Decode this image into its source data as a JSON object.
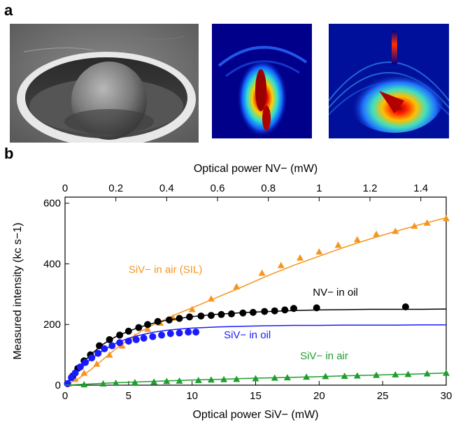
{
  "panel_a": {
    "label": "a",
    "images": [
      {
        "name": "sem-solid-immersion-lens-image"
      },
      {
        "name": "simulated-field-intensity-map-1"
      },
      {
        "name": "simulated-field-intensity-map-2"
      }
    ]
  },
  "panel_b": {
    "label": "b"
  },
  "chart_data": {
    "type": "scatter",
    "xlabel_bottom": "Optical power SiV− (mW)",
    "xlabel_top": "Optical power NV− (mW)",
    "ylabel": "Measured intensity (kc s−1)",
    "xlim": [
      0,
      30
    ],
    "xlim_top": [
      0,
      1.5
    ],
    "ylim": [
      0,
      620
    ],
    "x_ticks": [
      0,
      5,
      10,
      15,
      20,
      25,
      30
    ],
    "x_ticks_top": [
      "0",
      "0.2",
      "0.4",
      "0.6",
      "0.8",
      "1",
      "1.2",
      "1.4"
    ],
    "y_ticks": [
      0,
      200,
      400,
      600
    ],
    "grid": false,
    "series": [
      {
        "name": "SiV− in air (SIL)",
        "color": "#f7941d",
        "marker": "triangle",
        "x": [
          0.3,
          0.8,
          1.5,
          2.5,
          3.5,
          4.5,
          5.5,
          6.5,
          7.5,
          8.5,
          10,
          11.5,
          13.5,
          15.5,
          17,
          18.5,
          20,
          21.5,
          23,
          24.5,
          26,
          27.5,
          28.5,
          30
        ],
        "y": [
          5,
          20,
          40,
          70,
          100,
          130,
          160,
          185,
          205,
          222,
          250,
          285,
          325,
          370,
          395,
          420,
          440,
          462,
          480,
          498,
          508,
          525,
          535,
          550
        ],
        "fit_x": [
          0,
          1,
          2,
          3,
          4,
          5,
          6,
          7,
          8,
          9,
          10,
          12,
          14,
          16,
          18,
          20,
          22,
          24,
          26,
          28,
          30
        ],
        "fit_y": [
          0,
          20,
          50,
          85,
          120,
          150,
          178,
          200,
          220,
          238,
          255,
          290,
          325,
          362,
          395,
          425,
          455,
          482,
          507,
          530,
          552
        ],
        "label_x": 5,
        "label_y": 370
      },
      {
        "name": "NV− in oil",
        "color": "#000000",
        "marker": "circle",
        "x": [
          0.2,
          0.6,
          1,
          1.5,
          2,
          2.7,
          3.5,
          4.3,
          5,
          5.8,
          6.5,
          7.3,
          8.2,
          9,
          9.8,
          10.7,
          11.5,
          12.3,
          13.1,
          14,
          14.8,
          15.7,
          16.5,
          17.3,
          18,
          19.8,
          26.8
        ],
        "y": [
          5,
          30,
          55,
          80,
          100,
          130,
          150,
          165,
          178,
          190,
          200,
          210,
          215,
          220,
          225,
          228,
          230,
          233,
          235,
          238,
          240,
          243,
          245,
          248,
          253,
          255,
          258
        ],
        "fit_x": [
          0,
          1,
          2,
          3,
          4,
          5,
          6,
          7,
          8,
          10,
          12,
          14,
          16,
          18,
          20,
          22,
          24,
          26,
          28,
          30
        ],
        "fit_y": [
          0,
          55,
          100,
          135,
          160,
          178,
          193,
          205,
          214,
          226,
          234,
          239,
          243,
          246,
          248,
          249,
          250,
          250,
          250,
          251
        ],
        "label_x": 19.5,
        "label_y": 295
      },
      {
        "name": "SiV− in oil",
        "color": "#1a1aff",
        "marker": "circle",
        "x": [
          0.2,
          0.5,
          0.8,
          1.2,
          1.6,
          2.1,
          2.6,
          3.1,
          3.7,
          4.3,
          5,
          5.6,
          6.2,
          6.9,
          7.6,
          8.3,
          9,
          9.7,
          10.3
        ],
        "y": [
          5,
          25,
          40,
          60,
          75,
          90,
          105,
          120,
          130,
          140,
          145,
          150,
          155,
          160,
          165,
          170,
          172,
          175,
          175
        ],
        "fit_x": [
          0,
          1,
          2,
          3,
          4,
          5,
          6,
          7,
          8,
          9,
          10,
          12,
          14,
          16,
          18,
          20,
          22,
          24,
          26,
          28,
          30
        ],
        "fit_y": [
          0,
          45,
          85,
          115,
          138,
          155,
          166,
          175,
          181,
          185,
          188,
          192,
          194,
          196,
          197,
          197,
          198,
          198,
          198,
          199,
          199
        ],
        "label_x": 12.5,
        "label_y": 155
      },
      {
        "name": "SiV− in air",
        "color": "#1e9e2e",
        "marker": "triangle",
        "x": [
          1.5,
          3,
          4,
          5.5,
          7,
          8,
          9,
          10.5,
          11.5,
          12.5,
          13.5,
          15,
          16.5,
          17.5,
          19,
          20.5,
          22,
          23,
          24.5,
          26,
          27,
          28.5,
          30
        ],
        "y": [
          2,
          5,
          7,
          9,
          11,
          13,
          14,
          16,
          18,
          19,
          20,
          22,
          24,
          25,
          27,
          29,
          30,
          31,
          33,
          35,
          36,
          38,
          40
        ],
        "fit_x": [
          0,
          2,
          4,
          6,
          8,
          10,
          12,
          14,
          16,
          18,
          20,
          22,
          24,
          26,
          28,
          30
        ],
        "fit_y": [
          0,
          4,
          8,
          11,
          14,
          17,
          19,
          22,
          24,
          26,
          28,
          31,
          33,
          35,
          37,
          40
        ],
        "label_x": 18.5,
        "label_y": 85
      }
    ]
  }
}
